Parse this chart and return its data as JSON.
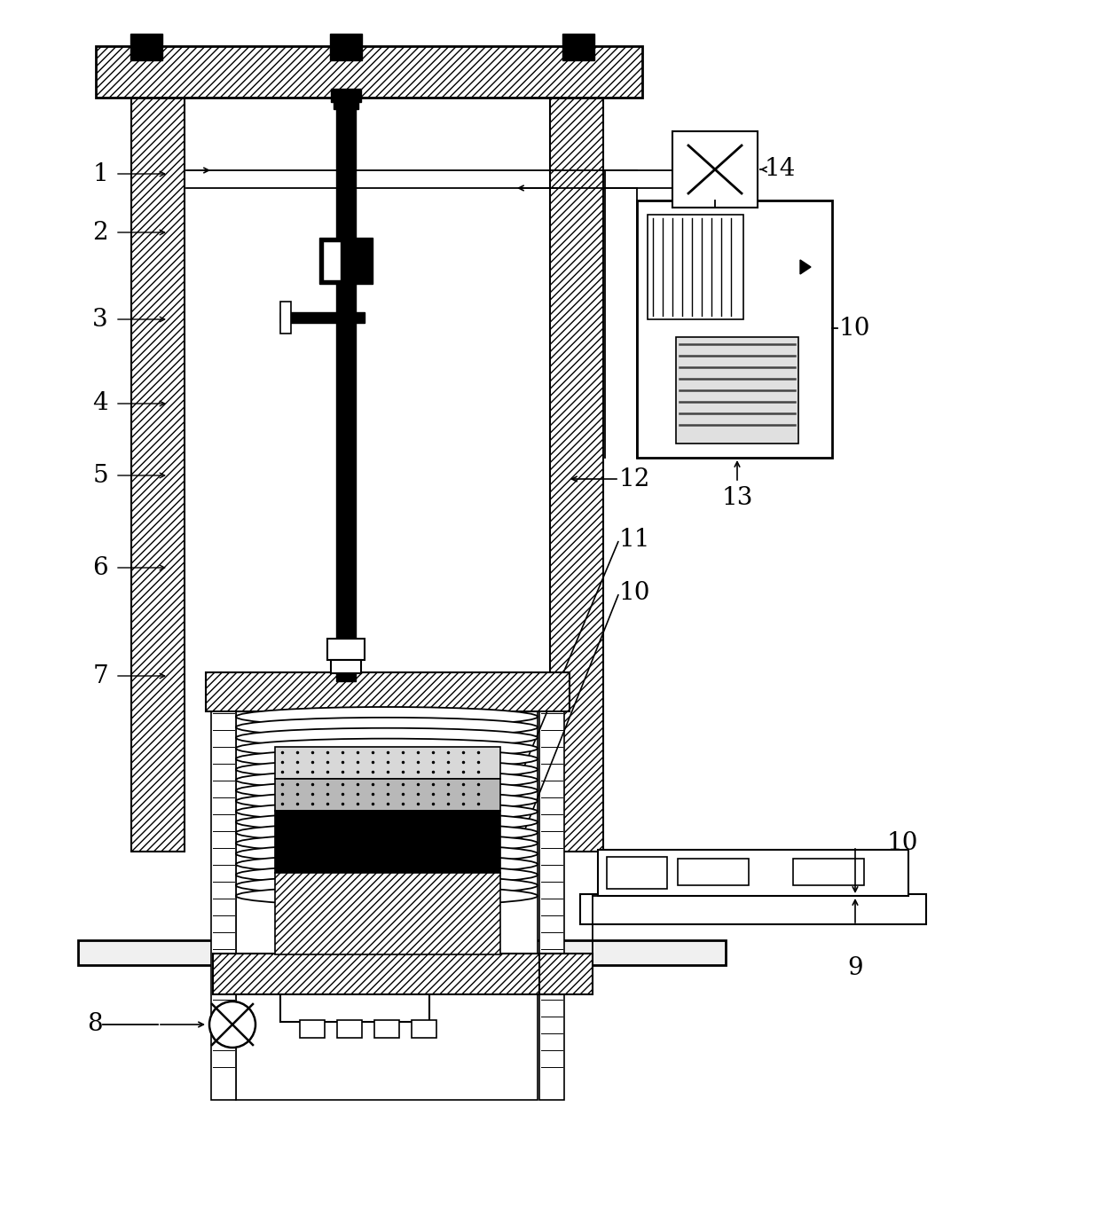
{
  "bg_color": "#ffffff",
  "line_color": "#000000",
  "fig_width": 12.4,
  "fig_height": 13.72
}
